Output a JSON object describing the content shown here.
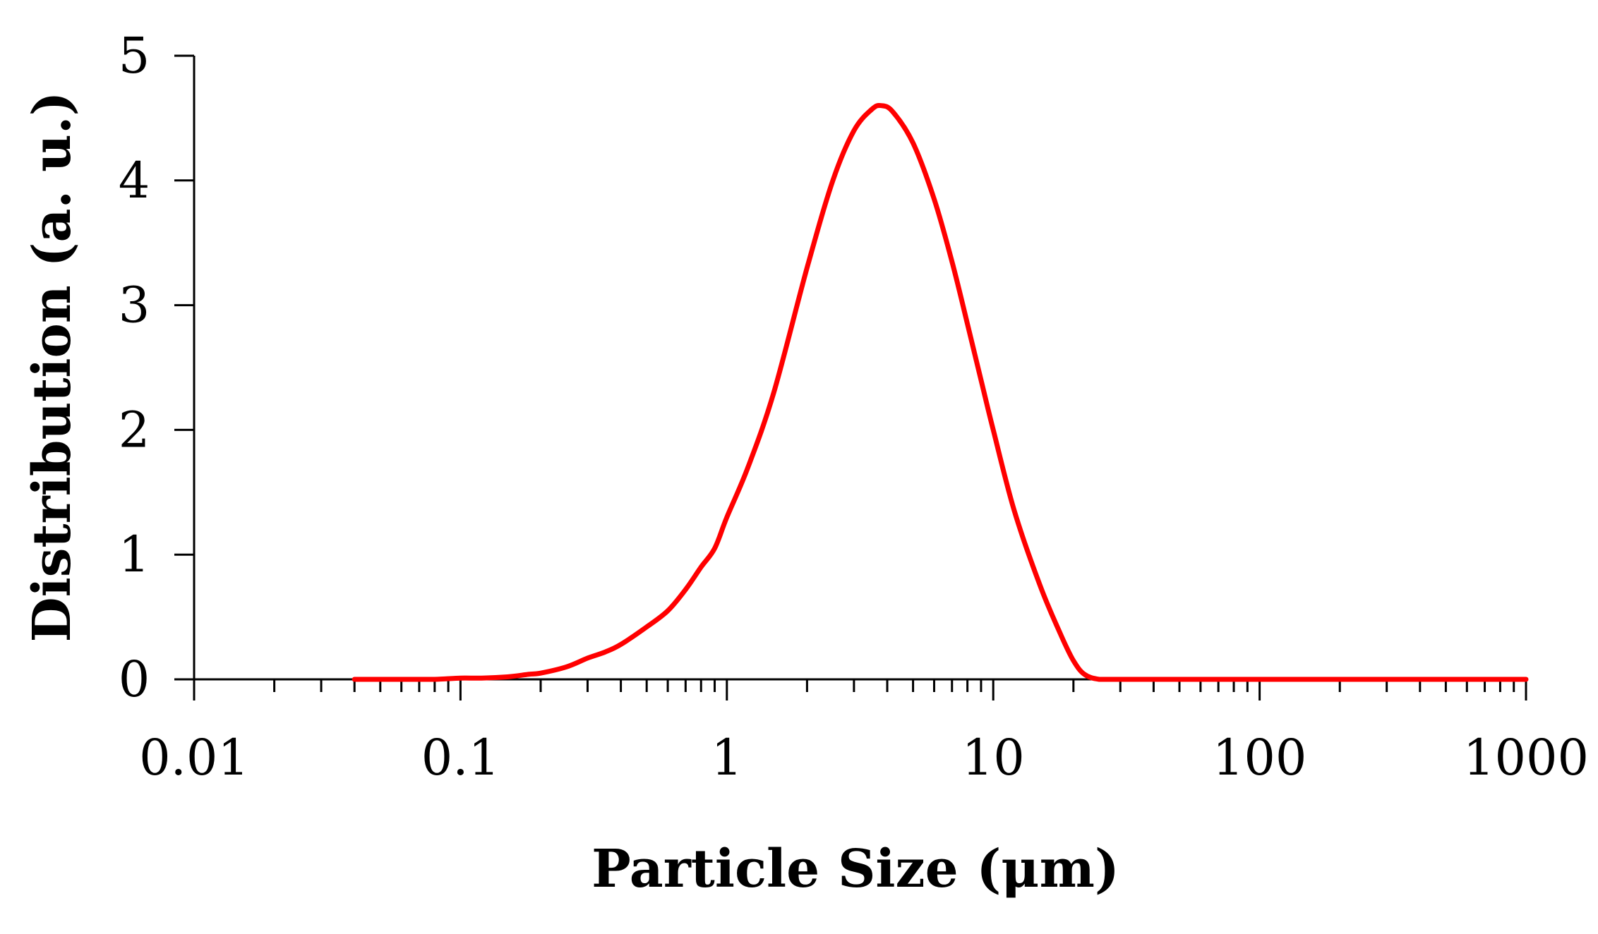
{
  "chart_data": {
    "type": "line",
    "title": "",
    "xlabel": "Particle Size (μm)",
    "ylabel": "Distribution (a. u.)",
    "x_scale": "log",
    "xlim": [
      0.01,
      1000
    ],
    "ylim": [
      0,
      5
    ],
    "x_ticks": [
      "0.01",
      "0.1",
      "1",
      "10",
      "100",
      "1000"
    ],
    "y_ticks": [
      "0",
      "1",
      "2",
      "3",
      "4",
      "5"
    ],
    "grid": false,
    "legend": "none",
    "series": [
      {
        "color": "#ff0000",
        "x": [
          0.04,
          0.06,
          0.08,
          0.1,
          0.12,
          0.15,
          0.18,
          0.2,
          0.25,
          0.3,
          0.35,
          0.4,
          0.5,
          0.6,
          0.7,
          0.8,
          0.9,
          1.0,
          1.2,
          1.5,
          2.0,
          2.5,
          3.0,
          3.5,
          3.8,
          4.2,
          5.0,
          6.0,
          7.0,
          8.0,
          9.0,
          10.0,
          12.0,
          15.0,
          18.0,
          20.0,
          22.0,
          25.0,
          30.0,
          50.0,
          100.0,
          200.0,
          500.0,
          1000.0
        ],
        "y": [
          0.0,
          0.0,
          0.0,
          0.01,
          0.01,
          0.02,
          0.04,
          0.05,
          0.1,
          0.17,
          0.22,
          0.28,
          0.42,
          0.55,
          0.72,
          0.9,
          1.05,
          1.3,
          1.7,
          2.3,
          3.3,
          4.0,
          4.4,
          4.57,
          4.6,
          4.55,
          4.3,
          3.85,
          3.35,
          2.85,
          2.4,
          2.0,
          1.35,
          0.75,
          0.35,
          0.15,
          0.04,
          0.0,
          0.0,
          0.0,
          0.0,
          0.0,
          0.0,
          0.0
        ]
      }
    ]
  }
}
